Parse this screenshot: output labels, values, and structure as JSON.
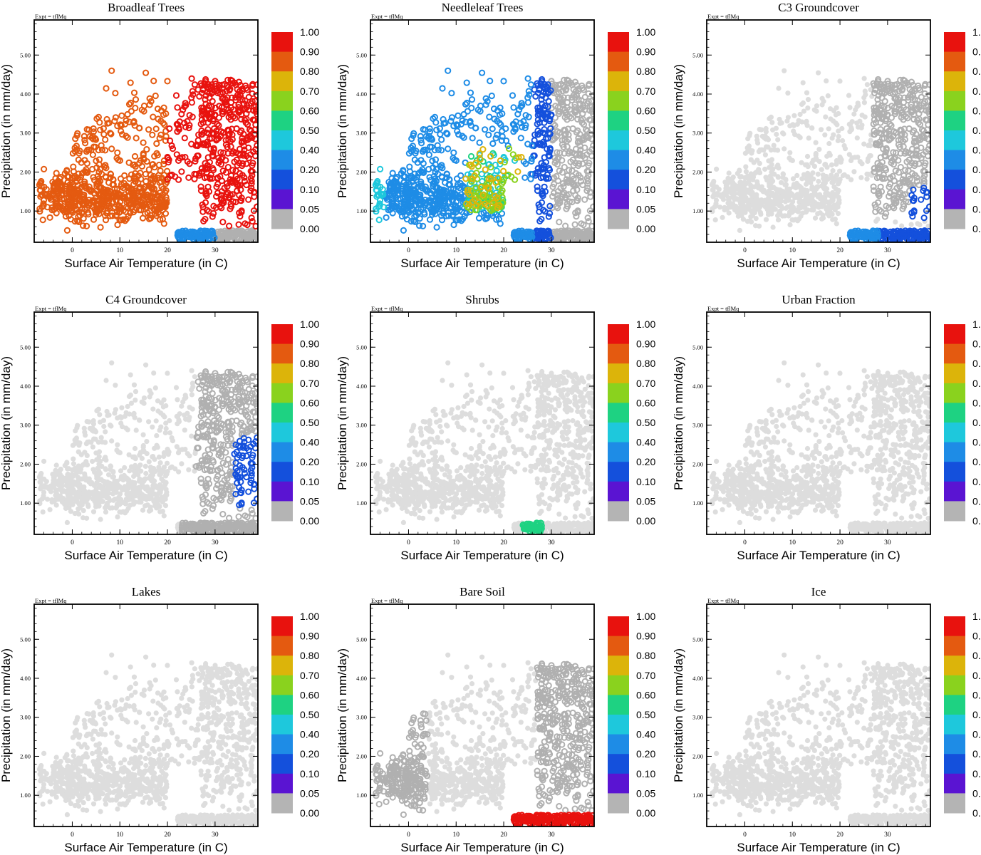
{
  "figure": {
    "expt_label": "Expt = tflMq"
  },
  "colors": {
    "background_cloud": "#dddddd",
    "zero_fraction": "#b0b0b0",
    "frame": "#000000"
  },
  "chart_data": [
    {
      "type": "scatter",
      "title": "Broadleaf Trees",
      "key": "broadleaf",
      "xlabel": "Surface Air Temperature (in C)",
      "ylabel": "Precipitation (in mm/day)",
      "xlim": [
        -8,
        39
      ],
      "ylim": [
        0.2,
        5.9
      ],
      "xticks": [
        0,
        10,
        20,
        30
      ],
      "yticks": [
        1.0,
        2.0,
        3.0,
        4.0,
        5.0
      ],
      "ytick_labels": [
        "1.00",
        "2.00",
        "3.00",
        "4.00",
        "5.00"
      ]
    },
    {
      "type": "scatter",
      "title": "Needleleaf Trees",
      "key": "needleleaf",
      "xlabel": "Surface Air Temperature (in C)",
      "ylabel": "Precipitation (in mm/day)",
      "xlim": [
        -8,
        39
      ],
      "ylim": [
        0.2,
        5.9
      ],
      "xticks": [
        0,
        10,
        20,
        30
      ],
      "yticks": [
        1.0,
        2.0,
        3.0,
        4.0,
        5.0
      ],
      "ytick_labels": [
        "1.00",
        "2.00",
        "3.00",
        "4.00",
        "5.00"
      ]
    },
    {
      "type": "scatter",
      "title": "C3 Groundcover",
      "key": "c3",
      "xlabel": "Surface Air Temperature (in C)",
      "ylabel": "Precipitation (in mm/day)",
      "xlim": [
        -8,
        39
      ],
      "ylim": [
        0.2,
        5.9
      ],
      "xticks": [
        0,
        10,
        20,
        30
      ],
      "yticks": [
        1.0,
        2.0,
        3.0,
        4.0,
        5.0
      ],
      "ytick_labels": [
        "1.00",
        "2.00",
        "3.00",
        "4.00",
        "5.00"
      ]
    },
    {
      "type": "scatter",
      "title": "C4 Groundcover",
      "key": "c4",
      "xlabel": "Surface Air Temperature (in C)",
      "ylabel": "Precipitation (in mm/day)",
      "xlim": [
        -8,
        39
      ],
      "ylim": [
        0.2,
        5.9
      ],
      "xticks": [
        0,
        10,
        20,
        30
      ],
      "yticks": [
        1.0,
        2.0,
        3.0,
        4.0,
        5.0
      ],
      "ytick_labels": [
        "1.00",
        "2.00",
        "3.00",
        "4.00",
        "5.00"
      ]
    },
    {
      "type": "scatter",
      "title": "Shrubs",
      "key": "shrubs",
      "xlabel": "Surface Air Temperature (in C)",
      "ylabel": "Precipitation (in mm/day)",
      "xlim": [
        -8,
        39
      ],
      "ylim": [
        0.2,
        5.9
      ],
      "xticks": [
        0,
        10,
        20,
        30
      ],
      "yticks": [
        1.0,
        2.0,
        3.0,
        4.0,
        5.0
      ],
      "ytick_labels": [
        "1.00",
        "2.00",
        "3.00",
        "4.00",
        "5.00"
      ]
    },
    {
      "type": "scatter",
      "title": "Urban Fraction",
      "key": "urban",
      "xlabel": "Surface Air Temperature (in C)",
      "ylabel": "Precipitation (in mm/day)",
      "xlim": [
        -8,
        39
      ],
      "ylim": [
        0.2,
        5.9
      ],
      "xticks": [
        0,
        10,
        20,
        30
      ],
      "yticks": [
        1.0,
        2.0,
        3.0,
        4.0,
        5.0
      ],
      "ytick_labels": [
        "1.00",
        "2.00",
        "3.00",
        "4.00",
        "5.00"
      ]
    },
    {
      "type": "scatter",
      "title": "Lakes",
      "key": "lakes",
      "xlabel": "Surface Air Temperature (in C)",
      "ylabel": "Precipitation (in mm/day)",
      "xlim": [
        -8,
        39
      ],
      "ylim": [
        0.2,
        5.9
      ],
      "xticks": [
        0,
        10,
        20,
        30
      ],
      "yticks": [
        1.0,
        2.0,
        3.0,
        4.0,
        5.0
      ],
      "ytick_labels": [
        "1.00",
        "2.00",
        "3.00",
        "4.00",
        "5.00"
      ]
    },
    {
      "type": "scatter",
      "title": "Bare Soil",
      "key": "baresoil",
      "xlabel": "Surface Air Temperature (in C)",
      "ylabel": "Precipitation (in mm/day)",
      "xlim": [
        -8,
        39
      ],
      "ylim": [
        0.2,
        5.9
      ],
      "xticks": [
        0,
        10,
        20,
        30
      ],
      "yticks": [
        1.0,
        2.0,
        3.0,
        4.0,
        5.0
      ],
      "ytick_labels": [
        "1.00",
        "2.00",
        "3.00",
        "4.00",
        "5.00"
      ]
    },
    {
      "type": "scatter",
      "title": "Ice",
      "key": "ice",
      "xlabel": "Surface Air Temperature (in C)",
      "ylabel": "Precipitation (in mm/day)",
      "xlim": [
        -8,
        39
      ],
      "ylim": [
        0.2,
        5.9
      ],
      "xticks": [
        0,
        10,
        20,
        30
      ],
      "yticks": [
        1.0,
        2.0,
        3.0,
        4.0,
        5.0
      ],
      "ytick_labels": [
        "1.00",
        "2.00",
        "3.00",
        "4.00",
        "5.00"
      ]
    }
  ],
  "colorbar": {
    "labels": [
      "1.00",
      "0.90",
      "0.80",
      "0.70",
      "0.60",
      "0.50",
      "0.40",
      "0.20",
      "0.10",
      "0.05",
      "0.00"
    ],
    "colors": [
      "#e8120e",
      "#e45a10",
      "#dcb40a",
      "#8ad21e",
      "#1ed282",
      "#1ec8dc",
      "#1e8ce6",
      "#1450dc",
      "#5a14d2",
      "#b4b4b4"
    ]
  }
}
